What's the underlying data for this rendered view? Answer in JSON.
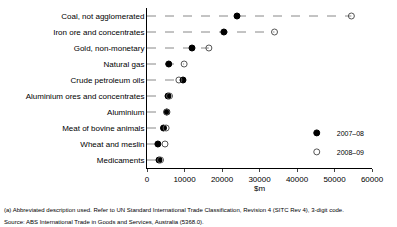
{
  "chart_data": {
    "type": "dot",
    "orientation": "horizontal",
    "categories": [
      "Coal, not agglomerated",
      "Iron ore and concentrates",
      "Gold, non-monetary",
      "Natural gas",
      "Crude petroleum oils",
      "Aluminium ores and concentrates",
      "Aluminium",
      "Meat of bovine animals",
      "Wheat and meslin",
      "Medicaments"
    ],
    "series": [
      {
        "name": "2007–08",
        "color": "#000000",
        "marker": "circle",
        "values": [
          24000,
          20500,
          12000,
          5800,
          9600,
          5600,
          5300,
          4400,
          2900,
          3200
        ]
      },
      {
        "name": "2008–09",
        "color": "#000000",
        "marker": "circle-open",
        "values": [
          54500,
          34000,
          16500,
          9900,
          8500,
          6000,
          5200,
          5100,
          4800,
          3600
        ]
      }
    ],
    "x_label": "$m",
    "xlim": [
      0,
      60000
    ],
    "xticks": [
      0,
      10000,
      20000,
      30000,
      40000,
      50000,
      60000
    ],
    "grid": false,
    "legend": "bottom right",
    "line_style": "dashed",
    "annotations": [
      "(a) Abbreviated description used. Refer to UN Standard International Trade Classification, Revision 4 (SITC Rev 4), 3-digit code.",
      "Source: ABS International Trade in Goods and Services, Australia (5368.0)."
    ]
  }
}
